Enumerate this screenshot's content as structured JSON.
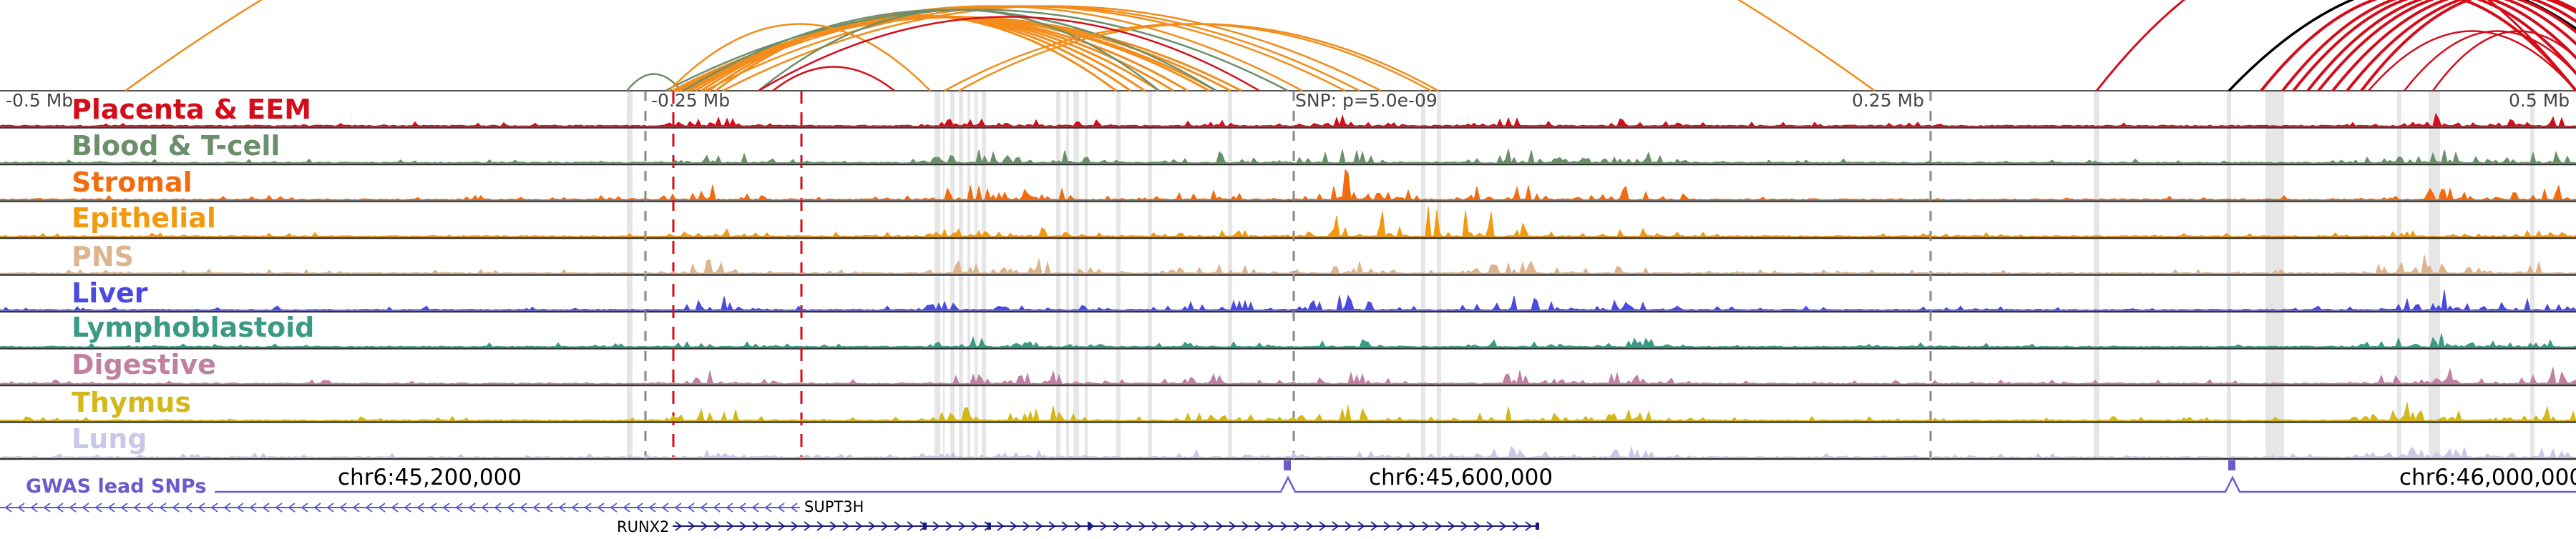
{
  "ruler": {
    "labels": [
      "-0.5 Mb",
      "-0.25 Mb",
      "SNP: p=5.0e-09",
      "0.25 Mb",
      "0.5 Mb"
    ]
  },
  "tracks": [
    {
      "label": "Placenta & EEM",
      "color": "#d40d1a"
    },
    {
      "label": "Blood & T-cell",
      "color": "#6b8e6b"
    },
    {
      "label": "Stromal",
      "color": "#f26b0f"
    },
    {
      "label": "Epithelial",
      "color": "#f29a0f"
    },
    {
      "label": "PNS",
      "color": "#dcb48e"
    },
    {
      "label": "Liver",
      "color": "#4a4ae0"
    },
    {
      "label": "Lymphoblastoid",
      "color": "#3a9a84"
    },
    {
      "label": "Digestive",
      "color": "#c080a0"
    },
    {
      "label": "Thymus",
      "color": "#d4b81a"
    },
    {
      "label": "Lung",
      "color": "#c8c8e8"
    }
  ],
  "coordinates": [
    "chr6:45,200,000",
    "chr6:45,600,000",
    "chr6:46,000,000"
  ],
  "gwas": {
    "label": "GWAS lead SNPs",
    "color": "#6a5acd"
  },
  "genes": [
    {
      "name": "SUPT3H",
      "strand": "-"
    },
    {
      "name": "RUNX2",
      "strand": "+"
    }
  ],
  "colors": {
    "arc_orange": "#f28c1a",
    "arc_green": "#6b8e6b",
    "arc_red": "#d40d1a",
    "arc_black": "#000000",
    "highlight": "#e6e6e6",
    "snp_marker": "#d40d1a"
  }
}
